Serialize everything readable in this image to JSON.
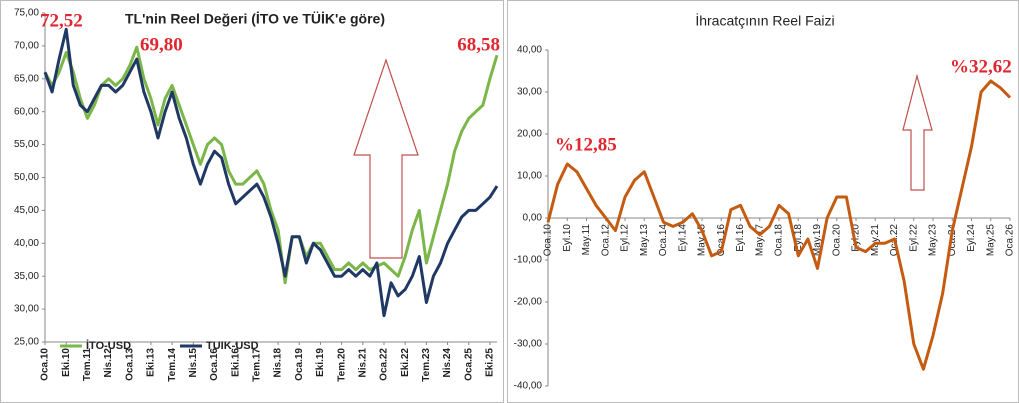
{
  "chart_data": [
    {
      "type": "line",
      "title": "TL'nin Reel Değeri (İTO ve TÜİK'e göre)",
      "categories": [
        "Oca.10",
        null,
        null,
        "Eki.10",
        null,
        null,
        "Tem.11",
        null,
        null,
        "Nis.12",
        null,
        null,
        "Oca.13",
        null,
        null,
        "Eki.13",
        null,
        null,
        "Tem.14",
        null,
        null,
        "Nis.15",
        null,
        null,
        "Oca.16",
        null,
        null,
        "Eki.16",
        null,
        null,
        "Tem.17",
        null,
        null,
        "Nis.18",
        null,
        null,
        "Oca.19",
        null,
        null,
        "Eki.19",
        null,
        null,
        "Tem.20",
        null,
        null,
        "Nis.21",
        null,
        null,
        "Oca.22",
        null,
        null,
        "Eki.22",
        null,
        null,
        "Tem.23",
        null,
        null,
        "Nis.24",
        null,
        null,
        "Oca.25",
        null,
        null,
        "Eki.25",
        null
      ],
      "series": [
        {
          "name": "İTO-USD",
          "color": "#7ab648",
          "values": [
            66,
            64,
            66,
            69,
            66,
            62,
            59,
            61,
            64,
            65,
            64,
            65,
            67,
            69.8,
            65,
            62,
            58,
            62,
            64,
            61,
            58,
            55,
            52,
            55,
            56,
            55,
            51,
            49,
            49,
            50,
            51,
            49,
            45,
            42,
            34,
            41,
            41,
            38,
            40,
            40,
            38,
            36,
            36,
            37,
            36,
            37,
            36,
            36.5,
            37,
            36,
            35,
            38,
            42,
            45,
            37,
            41,
            45,
            49,
            54,
            57,
            59,
            60,
            61,
            65,
            68.58
          ]
        },
        {
          "name": "TUIK-USD",
          "color": "#1f3864",
          "values": [
            66,
            63,
            68,
            72.52,
            64,
            61,
            60,
            62,
            64,
            64,
            63,
            64,
            66,
            68,
            63,
            60,
            56,
            60,
            63,
            59,
            56,
            52,
            49,
            52,
            54,
            53,
            49,
            46,
            47,
            48,
            49,
            47,
            44,
            40,
            35,
            41,
            41,
            37,
            40,
            39,
            37,
            35,
            35,
            36,
            35,
            36,
            35,
            37,
            29,
            34,
            32,
            33,
            35,
            38,
            31,
            35,
            37,
            40,
            42,
            44,
            45,
            45,
            46,
            47,
            48.7
          ]
        }
      ],
      "annotations": [
        "72,52",
        "69,80",
        "68,58"
      ],
      "ylim": [
        25,
        75
      ],
      "yticks": [
        {
          "value": 25,
          "label": "25,00"
        },
        {
          "value": 30,
          "label": "30,00"
        },
        {
          "value": 35,
          "label": "35,00"
        },
        {
          "value": 40,
          "label": "40,00"
        },
        {
          "value": 45,
          "label": "45,00"
        },
        {
          "value": 50,
          "label": "50,00"
        },
        {
          "value": 55,
          "label": "55,00"
        },
        {
          "value": 60,
          "label": "60,00"
        },
        {
          "value": 65,
          "label": "65,00"
        },
        {
          "value": 70,
          "label": "70,00"
        },
        {
          "value": 75,
          "label": "75,00"
        }
      ]
    },
    {
      "type": "line",
      "title": "İhracatçının Reel Faizi",
      "categories": [
        "Oca.10",
        null,
        "Eyl.10",
        null,
        "May.11",
        null,
        "Oca.12",
        null,
        "Eyl.12",
        null,
        "May.13",
        null,
        "Oca.14",
        null,
        "Eyl.14",
        null,
        "May.15",
        null,
        "Oca.16",
        null,
        "Eyl.16",
        null,
        "May.17",
        null,
        "Oca.18",
        null,
        "Eyl.18",
        null,
        "May.19",
        null,
        "Oca.20",
        null,
        "Eyl.20",
        null,
        "May.21",
        null,
        "Oca.22",
        null,
        "Eyl.22",
        null,
        "May.23",
        null,
        "Oca.24",
        null,
        "Eyl.24",
        null,
        "May.25",
        null,
        "Oca.26"
      ],
      "series": [
        {
          "name": "İhracatçının Reel Faizi",
          "color": "#c55a11",
          "values": [
            -1,
            8,
            12.85,
            11,
            7,
            3,
            0,
            -3,
            5,
            9,
            11,
            5,
            -1,
            -2,
            -1,
            1,
            -3,
            -9,
            -8,
            2,
            3,
            -2,
            -4,
            -2,
            3,
            1,
            -9,
            -5,
            -12,
            0,
            5,
            5,
            -7,
            -8,
            -6,
            -6,
            -5,
            -15,
            -30,
            -36,
            -28,
            -18,
            -3,
            7,
            17,
            30,
            32.62,
            31,
            28.7
          ]
        }
      ],
      "annotations": [
        "%12,85",
        "%32,62"
      ],
      "ylim": [
        -40,
        40
      ],
      "yticks": [
        {
          "value": -40,
          "label": "-40,00"
        },
        {
          "value": -30,
          "label": "-30,00"
        },
        {
          "value": -20,
          "label": "-20,00"
        },
        {
          "value": -10,
          "label": "-10,00"
        },
        {
          "value": 0,
          "label": "0,00"
        },
        {
          "value": 10,
          "label": "10,00"
        },
        {
          "value": 20,
          "label": "20,00"
        },
        {
          "value": 30,
          "label": "30,00"
        },
        {
          "value": 40,
          "label": "40,00"
        }
      ]
    }
  ]
}
